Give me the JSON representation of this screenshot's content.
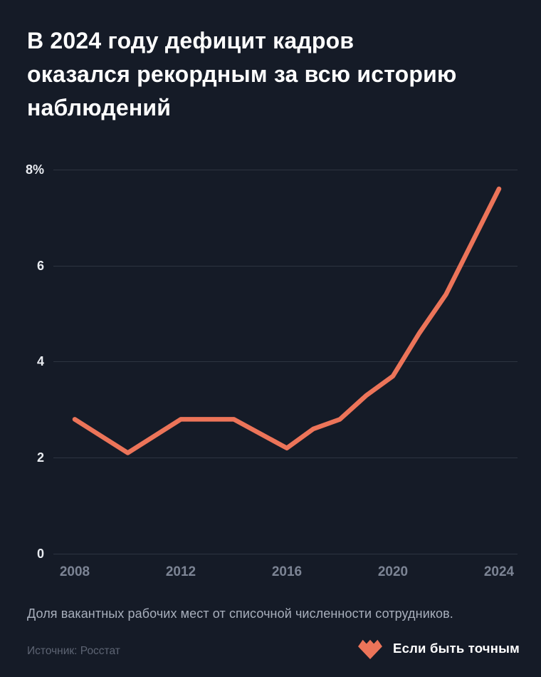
{
  "title": {
    "full": "В 2024 году дефицит кадров оказался рекордным за всю историю наблюдений",
    "lines": [
      "В 2024 году дефицит кадров",
      "оказался рекордным за всю историю",
      "наблюдений"
    ]
  },
  "chart_data": {
    "type": "line",
    "title": "В 2024 году дефицит кадров оказался рекордным за всю историю наблюдений",
    "series_name": "Доля вакантных рабочих мест, %",
    "x": [
      2008,
      2010,
      2012,
      2014,
      2016,
      2017,
      2018,
      2019,
      2020,
      2021,
      2022,
      2023,
      2024
    ],
    "values": [
      2.8,
      2.1,
      2.8,
      2.8,
      2.2,
      2.6,
      2.8,
      3.3,
      3.7,
      4.6,
      5.4,
      6.5,
      7.6
    ],
    "xlabel": "",
    "ylabel": "",
    "xlim": [
      2008,
      2024
    ],
    "ylim": [
      0,
      8
    ],
    "grid": "horizontal",
    "legend": "none",
    "y_ticks": [
      {
        "value": 8,
        "label": "8%"
      },
      {
        "value": 6,
        "label": "6"
      },
      {
        "value": 4,
        "label": "4"
      },
      {
        "value": 2,
        "label": "2"
      },
      {
        "value": 0,
        "label": "0"
      }
    ],
    "x_ticks": [
      {
        "value": 2008,
        "label": "2008"
      },
      {
        "value": 2012,
        "label": "2012"
      },
      {
        "value": 2016,
        "label": "2016"
      },
      {
        "value": 2020,
        "label": "2020"
      },
      {
        "value": 2024,
        "label": "2024"
      }
    ],
    "line_color": "#ec7459"
  },
  "caption": "Доля вакантных рабочих мест от списочной численности сотрудников.",
  "source": "Источник: Росстат",
  "logo": {
    "text": "Если быть точным",
    "icon": "zigzag-heart-icon",
    "icon_color": "#ec7459"
  },
  "colors": {
    "background": "#151b27",
    "line": "#ec7459",
    "gridline": "#2d3441",
    "title_text": "#ffffff",
    "y_tick_text": "#e9ecf1",
    "x_tick_text": "#7c8494",
    "caption_text": "#a8afbc",
    "source_text": "#5d6473"
  }
}
